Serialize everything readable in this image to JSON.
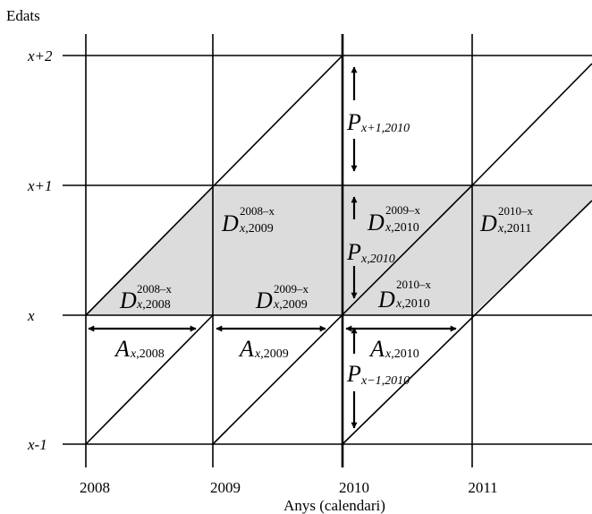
{
  "title": "Edats",
  "x_axis_label": "Anys (calendari)",
  "years": [
    "2008",
    "2009",
    "2010",
    "2011"
  ],
  "ages": [
    "x+2",
    "x+1",
    "x",
    "x-1"
  ],
  "shading_color": "#dcdcdc",
  "symbols": {
    "death": "D",
    "exposure": "A",
    "population": "P"
  },
  "death_cells": [
    {
      "id": "d-2008-lower",
      "cohort": "2008–x",
      "sub_age": "x",
      "sub_year": ",2008"
    },
    {
      "id": "d-2009-upper",
      "cohort": "2008–x",
      "sub_age": "x",
      "sub_year": ",2009"
    },
    {
      "id": "d-2009-lower",
      "cohort": "2009–x",
      "sub_age": "x",
      "sub_year": ",2009"
    },
    {
      "id": "d-2010-upper",
      "cohort": "2009–x",
      "sub_age": "x",
      "sub_year": ",2010"
    },
    {
      "id": "d-2010-lower",
      "cohort": "2010–x",
      "sub_age": "x",
      "sub_year": ",2010"
    },
    {
      "id": "d-2011-upper",
      "cohort": "2010–x",
      "sub_age": "x",
      "sub_year": ",2011"
    }
  ],
  "exposure_labels": [
    {
      "id": "a-2008",
      "sub_age": "x",
      "sub_year": ",2008"
    },
    {
      "id": "a-2009",
      "sub_age": "x",
      "sub_year": ",2009"
    },
    {
      "id": "a-2010",
      "sub_age": "x",
      "sub_year": ",2010"
    }
  ],
  "population_labels": [
    {
      "id": "p-upper",
      "sub": "x+1,2010"
    },
    {
      "id": "p-mid",
      "sub": "x,2010"
    },
    {
      "id": "p-lower",
      "sub": "x−1,2010"
    }
  ]
}
